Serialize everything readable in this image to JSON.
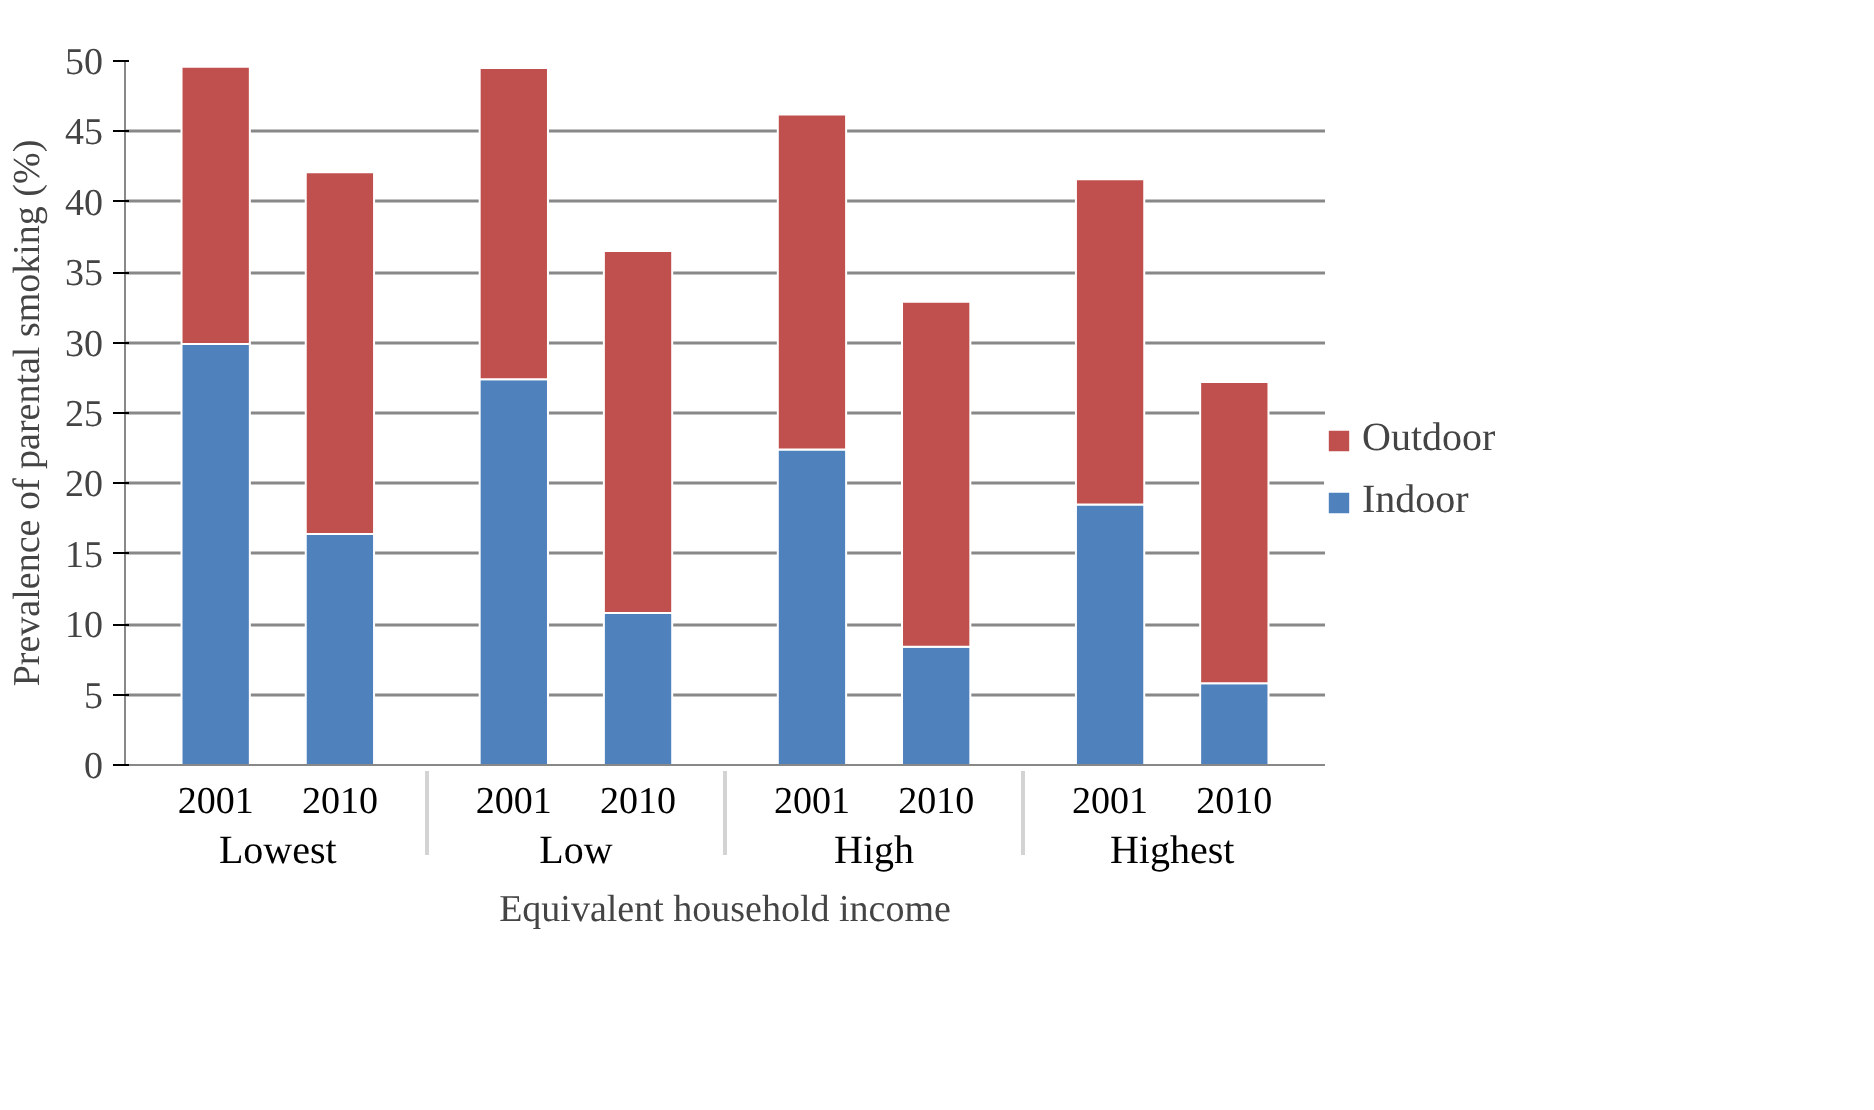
{
  "chart_data": {
    "type": "bar",
    "stacked": true,
    "xlabel": "Equivalent household income",
    "ylabel": "Prevalence of parental smoking (%)",
    "categories": [
      "2001",
      "2010",
      "2001",
      "2010",
      "2001",
      "2010",
      "2001",
      "2010"
    ],
    "annotations": [
      "Lowest",
      "Low",
      "High",
      "Highest"
    ],
    "series": [
      {
        "name": "Indoor",
        "color": "#4f81bd",
        "values": [
          29.9,
          16.4,
          27.4,
          10.8,
          22.4,
          8.4,
          18.5,
          5.8
        ]
      },
      {
        "name": "Outdoor",
        "color": "#c0504d",
        "values": [
          19.7,
          25.7,
          22.1,
          25.7,
          23.8,
          24.5,
          23.1,
          21.4
        ]
      }
    ],
    "ylim": [
      0,
      50
    ],
    "yticks": [
      0,
      5,
      10,
      15,
      20,
      25,
      30,
      35,
      40,
      45,
      50
    ],
    "grid": "y",
    "legend": "right"
  }
}
